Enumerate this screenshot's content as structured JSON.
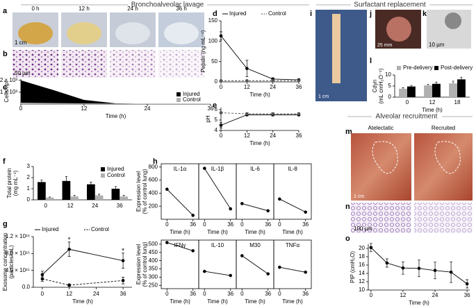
{
  "sections": [
    "Bronchoalveolar lavage",
    "Surfactant replacement",
    "Alveolar recruitment"
  ],
  "photos": [
    {
      "letter": "a",
      "labels": [
        "0 h",
        "12 h",
        "24 h",
        "36 h"
      ],
      "scale": "1 cm"
    },
    {
      "letter": "b",
      "scale": "50 µm"
    },
    {
      "letter": "i",
      "scale": "1 cm"
    },
    {
      "letter": "j",
      "scale": "25 mm"
    },
    {
      "letter": "k",
      "scale": "10 µm"
    },
    {
      "letter": "m",
      "labels": [
        "Atelectatic",
        "Recruited"
      ],
      "scale": "1 cm"
    },
    {
      "letter": "n",
      "scale": "100 µm"
    }
  ],
  "chart_data": [
    {
      "type": "area",
      "letter": "c",
      "y_label": "Cells/hpf",
      "x_label": "Time (h)",
      "x": [
        0,
        6,
        12,
        18,
        24,
        36
      ],
      "xlim": [
        0,
        36
      ],
      "xticks": [
        0,
        12,
        24,
        36
      ],
      "ylim": [
        0,
        2100
      ],
      "yticks": [
        {
          "value": 1000,
          "label": "1 × 10³"
        },
        {
          "value": 2000,
          "label": "2 × 10³"
        }
      ],
      "legend": "bottom-right",
      "series": [
        {
          "name": "Injured",
          "color": "#000000",
          "values": [
            2000,
            1200,
            350,
            60,
            15,
            5
          ]
        },
        {
          "name": "Control",
          "color": "#b0b0b0",
          "values": [
            120,
            90,
            60,
            40,
            25,
            20
          ]
        }
      ]
    },
    {
      "type": "line",
      "letter": "d",
      "y_label": "Pepsin (ng mL⁻¹)",
      "x_label": "Time (h)",
      "x": [
        0,
        12,
        24,
        36
      ],
      "xlim": [
        0,
        36
      ],
      "xticks": [
        0,
        12,
        24,
        36
      ],
      "ylim": [
        0,
        150
      ],
      "yticks": [
        0,
        50,
        100,
        150
      ],
      "legend": "top",
      "series": [
        {
          "name": "Injured",
          "color": "#000000",
          "values": [
            113,
            33,
            7,
            5
          ],
          "errors": [
            10,
            20,
            3,
            2
          ]
        },
        {
          "name": "Control",
          "color": "#555555",
          "style": "dashed",
          "values": [
            3,
            3,
            3,
            3
          ],
          "errors": [
            1,
            1,
            1,
            1
          ]
        }
      ]
    },
    {
      "type": "line",
      "letter": "e",
      "y_label": "pH",
      "x_label": "Time (h)",
      "x": [
        0,
        12,
        24,
        36
      ],
      "xlim": [
        0,
        36
      ],
      "xticks": [
        0,
        12,
        24,
        36
      ],
      "ylim": [
        4,
        6.2
      ],
      "yticks": [
        4,
        5,
        6
      ],
      "series": [
        {
          "name": "Injured",
          "color": "#000000",
          "values": [
            4.5,
            5.5,
            5.5,
            5.5
          ],
          "errors": [
            0.25,
            0.1,
            0.1,
            0.1
          ]
        },
        {
          "name": "Control",
          "color": "#555555",
          "style": "dashed",
          "values": [
            5.7,
            5.6,
            5.6,
            5.6
          ],
          "errors": [
            0.1,
            0.1,
            0.1,
            0.1
          ]
        }
      ]
    },
    {
      "type": "bar",
      "letter": "f",
      "y_label": [
        "Total protein",
        "(mg mL⁻¹)"
      ],
      "categories": [
        "0",
        "12",
        "24",
        "36"
      ],
      "ylim": [
        0,
        3
      ],
      "yticks": [
        0,
        1,
        2,
        3
      ],
      "legend": "top-right",
      "series": [
        {
          "name": "Injured",
          "color": "#000000",
          "values": [
            1.6,
            1.7,
            1.4,
            1.0
          ],
          "errors": [
            0.2,
            0.4,
            0.2,
            0.2
          ]
        },
        {
          "name": "Control",
          "color": "#b0b0b0",
          "values": [
            0.2,
            0.3,
            0.4,
            0.3
          ],
          "errors": [
            0.05,
            0.1,
            0.1,
            0.1
          ]
        }
      ]
    },
    {
      "type": "line",
      "letter": "g",
      "y_label": [
        "Exosome concentration",
        "(particles/mL)"
      ],
      "x_label": "Time (h)",
      "x": [
        0,
        12,
        36
      ],
      "xlim": [
        -4,
        40
      ],
      "xticks": [
        0,
        12,
        24,
        36
      ],
      "ylim": [
        0,
        12000000000000000
      ],
      "yticks": [
        {
          "value": 0,
          "label": "0.0"
        },
        {
          "value": 4000000000000000,
          "label": "4.0 × 10¹⁵"
        },
        {
          "value": 8000000000000000,
          "label": "8.0 × 10¹⁵"
        },
        {
          "value": 12000000000000000,
          "label": "1.2 × 10¹⁶"
        }
      ],
      "legend": "top",
      "annotations": [
        {
          "text": "*",
          "x": 12
        },
        {
          "text": "*",
          "x": 36
        }
      ],
      "series": [
        {
          "name": "Injured",
          "color": "#000000",
          "values": [
            3000000000000000,
            9000000000000000,
            6300000000000000
          ],
          "errors": [
            800000000000000,
            1700000000000000,
            1800000000000000
          ]
        },
        {
          "name": "Control",
          "color": "#000000",
          "style": "dashed",
          "values": [
            2000000000000000,
            500000000000000,
            1600000000000000
          ],
          "errors": [
            600000000000000,
            300000000000000,
            800000000000000
          ]
        }
      ]
    },
    {
      "type": "line",
      "letter": "h",
      "title": "IL-1α",
      "y_label": [
        "Expression level",
        "(% of control lung)"
      ],
      "x_label": "Time (h)",
      "x": [
        0,
        36
      ],
      "xlim": [
        -8,
        44
      ],
      "xticks": [
        0,
        36
      ],
      "ylim": [
        0,
        850
      ],
      "yticks": [
        200,
        400,
        600,
        800
      ],
      "color": "#000000",
      "values": [
        460,
        60
      ]
    },
    {
      "type": "line",
      "title": "IL-1β",
      "x_label": "Time (h)",
      "x": [
        0,
        36
      ],
      "xlim": [
        -8,
        44
      ],
      "xticks": [
        0,
        36
      ],
      "ylim": [
        0,
        850
      ],
      "color": "#000000",
      "values": [
        780,
        160
      ]
    },
    {
      "type": "line",
      "title": "IL-6",
      "x_label": "Time (h)",
      "x": [
        0,
        36
      ],
      "xlim": [
        -8,
        44
      ],
      "xticks": [
        0,
        36
      ],
      "ylim": [
        0,
        850
      ],
      "color": "#000000",
      "values": [
        240,
        130
      ]
    },
    {
      "type": "line",
      "title": "IL-8",
      "x_label": "Time (h)",
      "x": [
        0,
        36
      ],
      "xlim": [
        -8,
        44
      ],
      "xticks": [
        0,
        36
      ],
      "ylim": [
        0,
        850
      ],
      "color": "#000000",
      "values": [
        310,
        110
      ]
    },
    {
      "type": "line",
      "title": "IFNγ",
      "y_label": [
        "Expression level",
        "(% of control lung)"
      ],
      "x_label": "Time (h)",
      "x": [
        0,
        36
      ],
      "xlim": [
        -8,
        44
      ],
      "xticks": [
        0,
        36
      ],
      "ylim": [
        230,
        525
      ],
      "yticks": [
        250,
        300,
        350,
        400,
        450,
        500
      ],
      "color": "#000000",
      "values": [
        510,
        460
      ]
    },
    {
      "type": "line",
      "title": "IL-10",
      "x_label": "Time (h)",
      "x": [
        0,
        36
      ],
      "xlim": [
        -8,
        44
      ],
      "xticks": [
        0,
        36
      ],
      "ylim": [
        230,
        525
      ],
      "color": "#000000",
      "values": [
        335,
        310
      ]
    },
    {
      "type": "line",
      "title": "M30",
      "x_label": "Time (h)",
      "x": [
        0,
        36
      ],
      "xlim": [
        -8,
        44
      ],
      "xticks": [
        0,
        36
      ],
      "ylim": [
        230,
        525
      ],
      "color": "#000000",
      "values": [
        430,
        320
      ]
    },
    {
      "type": "line",
      "title": "TNFα",
      "x_label": "Time (h)",
      "x": [
        0,
        36
      ],
      "xlim": [
        -8,
        44
      ],
      "xticks": [
        0,
        36
      ],
      "ylim": [
        230,
        525
      ],
      "color": "#000000",
      "values": [
        360,
        330
      ]
    },
    {
      "type": "bar",
      "letter": "l",
      "y_label": [
        "Cdyn",
        "(mL cmH₂O⁻¹)"
      ],
      "x_label": "Time (h)",
      "categories": [
        "0",
        "12",
        "18"
      ],
      "ylim": [
        0,
        10
      ],
      "yticks": [
        0,
        5,
        10
      ],
      "legend": "top",
      "series": [
        {
          "name": "Pre-delivery",
          "color": "#b0b0b0",
          "values": [
            3.8,
            5.3,
            6.2
          ],
          "errors": [
            0.5,
            0.5,
            1
          ]
        },
        {
          "name": "Post-delivery",
          "color": "#000000",
          "values": [
            4.8,
            6.0,
            8.0
          ],
          "errors": [
            0.5,
            0.8,
            1
          ]
        }
      ]
    },
    {
      "type": "line",
      "letter": "o",
      "y_label": "PIP (cmH₂O)",
      "x_label": "Time (h)",
      "x": [
        0,
        6,
        12,
        18,
        24,
        30,
        36
      ],
      "xlim": [
        -1,
        37
      ],
      "xticks": [
        0,
        12,
        24,
        36
      ],
      "ylim": [
        10,
        21
      ],
      "yticks": [
        10,
        12,
        14,
        16,
        18,
        20
      ],
      "color": "#000000",
      "values": [
        20.2,
        16.5,
        15.3,
        15.2,
        14.7,
        14.3,
        11.5
      ],
      "errors": [
        1,
        1,
        1.5,
        2,
        2,
        2.5,
        1
      ]
    }
  ]
}
